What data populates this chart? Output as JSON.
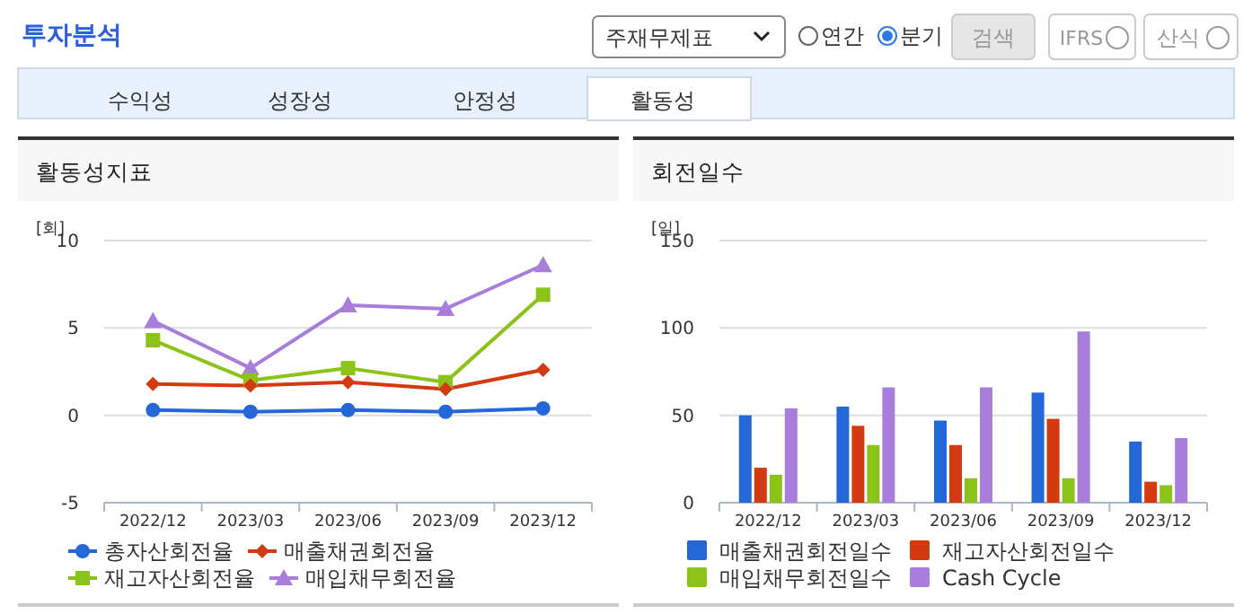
{
  "chart_data": [
    {
      "type": "other",
      "annotations": [
        "투자분석",
        "주재무제표",
        "연간",
        "분기",
        "검색",
        "IFRS",
        "산식",
        "수익성",
        "성장성",
        "안정성",
        "활동성"
      ]
    },
    {
      "type": "line",
      "title": "활동성지표",
      "ylabel": "[회]",
      "categories": [
        "2022/12",
        "2023/03",
        "2023/06",
        "2023/09",
        "2023/12"
      ],
      "ylim": [
        -5,
        10
      ],
      "yticks": [
        -5,
        0,
        5,
        10
      ],
      "grid": "y",
      "legend": "bottom",
      "series": [
        {
          "name": "총자산회전율",
          "color": "#2467d8",
          "marker": "circle",
          "values": [
            0.3,
            0.2,
            0.3,
            0.2,
            0.4
          ]
        },
        {
          "name": "매출채권회전율",
          "color": "#d43a10",
          "marker": "diamond",
          "values": [
            1.8,
            1.7,
            1.9,
            1.5,
            2.6
          ]
        },
        {
          "name": "재고자산회전율",
          "color": "#8cc319",
          "marker": "square",
          "values": [
            4.3,
            2.0,
            2.7,
            1.9,
            6.9
          ]
        },
        {
          "name": "매입채무회전율",
          "color": "#a97ddc",
          "marker": "triangle",
          "values": [
            5.4,
            2.7,
            6.3,
            6.1,
            8.6
          ]
        }
      ]
    },
    {
      "type": "bar",
      "title": "회전일수",
      "ylabel": "[일]",
      "categories": [
        "2022/12",
        "2023/03",
        "2023/06",
        "2023/09",
        "2023/12"
      ],
      "ylim": [
        0,
        150
      ],
      "yticks": [
        0,
        50,
        100,
        150
      ],
      "grid": "y",
      "legend": "bottom",
      "series": [
        {
          "name": "매출채권회전일수",
          "color": "#2467d8",
          "values": [
            50,
            55,
            47,
            63,
            35
          ]
        },
        {
          "name": "재고자산회전일수",
          "color": "#d43a10",
          "values": [
            20,
            44,
            33,
            48,
            12
          ]
        },
        {
          "name": "매입채무회전일수",
          "color": "#8cc319",
          "values": [
            16,
            33,
            14,
            14,
            10
          ]
        },
        {
          "name": "Cash Cycle",
          "color": "#a97ddc",
          "values": [
            54,
            66,
            66,
            98,
            37
          ]
        }
      ]
    }
  ]
}
